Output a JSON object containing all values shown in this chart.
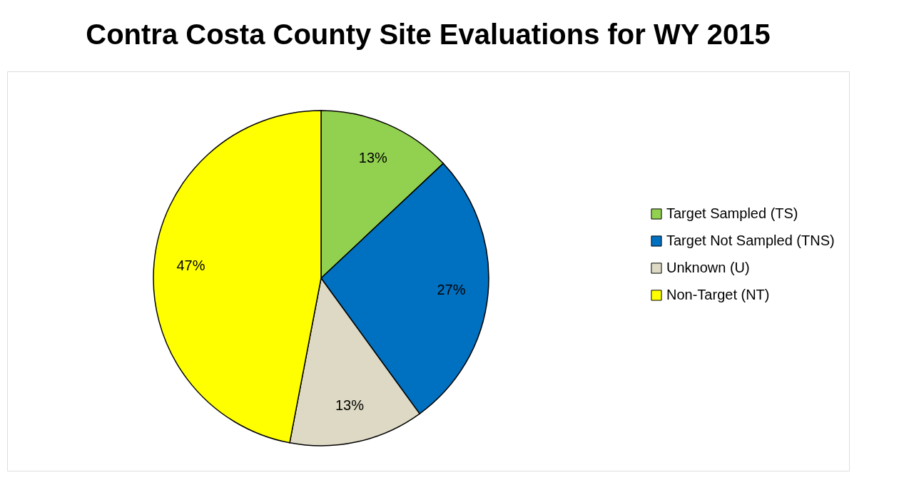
{
  "chart_data": {
    "type": "pie",
    "title": "Contra Costa County Site Evaluations for WY 2015",
    "categories": [
      "Target Sampled (TS)",
      "Target Not Sampled (TNS)",
      "Unknown (U)",
      "Non-Target (NT)"
    ],
    "values": [
      13,
      27,
      13,
      47
    ],
    "colors": [
      "#92d050",
      "#0070c0",
      "#ddd9c4",
      "#ffff00"
    ],
    "value_labels": [
      "13%",
      "27%",
      "13%",
      "47%"
    ],
    "legend": "right"
  }
}
